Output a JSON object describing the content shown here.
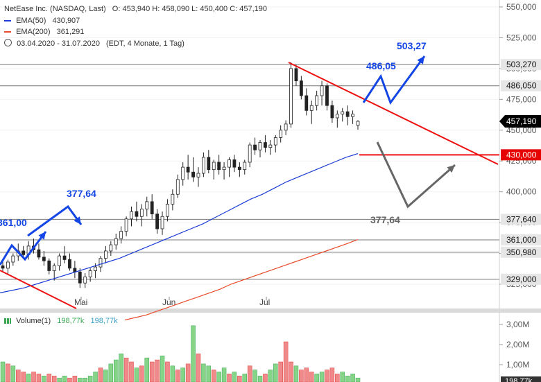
{
  "header": {
    "instrument": "NetEase Inc. (NASDAQ, Last)",
    "ohlc": "O: 453,940  H: 458,090  L: 450,400  C: 457,190",
    "ema50_label": "EMA(50)",
    "ema50_value": "430,907",
    "ema200_label": "EMA(200)",
    "ema200_value": "361,291",
    "range": "03.04.2020 - 31.07.2020",
    "range_note": "(EDT, 4 Monate, 1 Tag)"
  },
  "volume_legend": {
    "label": "Volume(1)",
    "value1": "198,77k",
    "value2": "198,77k"
  },
  "colors": {
    "up": "#3aa852",
    "down": "#e03c3c",
    "ema50": "#1a3cd6",
    "ema200": "#e84b2a",
    "arrow_blue": "#1446e6",
    "arrow_gray": "#666666",
    "trend_red": "#ee1111",
    "price_tag_black": "#000000",
    "price_tag_red": "#e60000"
  },
  "chart_data": {
    "type": "candlestick",
    "x_range": [
      "2020-04-03",
      "2020-07-31"
    ],
    "y_axis_labels": [
      "550,000",
      "525,000",
      "500,000",
      "475,000",
      "450,000",
      "425,000",
      "400,000",
      "375,000",
      "350,000",
      "325,000"
    ],
    "y_axis_values": [
      550,
      525,
      500,
      475,
      450,
      425,
      400,
      375,
      350,
      325
    ],
    "x_tick_labels": [
      "Mai",
      "Jun",
      "Jul"
    ],
    "price_levels": [
      {
        "label": "503,270",
        "value": 503.27
      },
      {
        "label": "486,050",
        "value": 486.05
      },
      {
        "label": "430,000",
        "value": 430.0
      },
      {
        "label": "377,640",
        "value": 377.64
      },
      {
        "label": "361,000",
        "value": 361.0
      },
      {
        "label": "350,980",
        "value": 350.98
      },
      {
        "label": "329,000",
        "value": 329.0
      }
    ],
    "last_price": {
      "label": "457,190",
      "value": 457.19
    },
    "annotations": [
      {
        "text": "503,27"
      },
      {
        "text": "486,05"
      },
      {
        "text": "377,64"
      },
      {
        "text": "361,00"
      },
      {
        "text": "377,64"
      }
    ],
    "candles": [
      [
        340,
        345,
        335,
        338
      ],
      [
        338,
        345,
        333,
        343
      ],
      [
        343,
        350,
        340,
        348
      ],
      [
        348,
        358,
        344,
        352
      ],
      [
        352,
        356,
        346,
        349
      ],
      [
        349,
        360,
        345,
        356
      ],
      [
        356,
        362,
        350,
        353
      ],
      [
        353,
        358,
        345,
        347
      ],
      [
        347,
        352,
        340,
        344
      ],
      [
        344,
        346,
        333,
        336
      ],
      [
        336,
        342,
        328,
        340
      ],
      [
        340,
        350,
        336,
        348
      ],
      [
        348,
        356,
        342,
        345
      ],
      [
        345,
        350,
        336,
        338
      ],
      [
        338,
        344,
        330,
        335
      ],
      [
        335,
        338,
        322,
        326
      ],
      [
        326,
        334,
        322,
        331
      ],
      [
        331,
        338,
        327,
        336
      ],
      [
        336,
        342,
        330,
        339
      ],
      [
        339,
        348,
        335,
        346
      ],
      [
        346,
        356,
        342,
        352
      ],
      [
        352,
        360,
        348,
        357
      ],
      [
        357,
        366,
        353,
        362
      ],
      [
        362,
        372,
        358,
        368
      ],
      [
        368,
        380,
        364,
        378
      ],
      [
        378,
        388,
        372,
        384
      ],
      [
        384,
        392,
        376,
        380
      ],
      [
        380,
        390,
        372,
        386
      ],
      [
        386,
        396,
        380,
        392
      ],
      [
        392,
        398,
        378,
        382
      ],
      [
        382,
        386,
        366,
        370
      ],
      [
        370,
        384,
        365,
        380
      ],
      [
        380,
        394,
        376,
        390
      ],
      [
        390,
        402,
        385,
        398
      ],
      [
        398,
        414,
        395,
        410
      ],
      [
        410,
        424,
        405,
        420
      ],
      [
        420,
        430,
        410,
        416
      ],
      [
        416,
        428,
        408,
        412
      ],
      [
        412,
        420,
        404,
        415
      ],
      [
        415,
        432,
        412,
        428
      ],
      [
        428,
        434,
        415,
        418
      ],
      [
        418,
        426,
        410,
        424
      ],
      [
        424,
        430,
        414,
        418
      ],
      [
        418,
        424,
        410,
        420
      ],
      [
        420,
        428,
        412,
        426
      ],
      [
        426,
        430,
        416,
        420
      ],
      [
        420,
        424,
        412,
        418
      ],
      [
        418,
        426,
        414,
        424
      ],
      [
        424,
        440,
        420,
        438
      ],
      [
        438,
        444,
        430,
        434
      ],
      [
        434,
        442,
        428,
        440
      ],
      [
        440,
        446,
        432,
        436
      ],
      [
        436,
        442,
        430,
        438
      ],
      [
        438,
        446,
        432,
        444
      ],
      [
        444,
        454,
        440,
        450
      ],
      [
        450,
        458,
        446,
        455
      ],
      [
        455,
        505,
        452,
        500
      ],
      [
        500,
        503,
        486,
        490
      ],
      [
        490,
        494,
        475,
        478
      ],
      [
        478,
        484,
        462,
        466
      ],
      [
        466,
        474,
        455,
        470
      ],
      [
        470,
        482,
        466,
        478
      ],
      [
        478,
        490,
        470,
        486
      ],
      [
        486,
        488,
        466,
        470
      ],
      [
        470,
        474,
        456,
        460
      ],
      [
        460,
        466,
        452,
        463
      ],
      [
        463,
        468,
        457,
        465
      ],
      [
        465,
        470,
        454,
        461
      ],
      [
        461,
        466,
        455,
        463
      ],
      [
        453.94,
        458.09,
        450.4,
        457.19
      ]
    ],
    "ema50": [
      318,
      320,
      322,
      325,
      328,
      331,
      334,
      337,
      340,
      343,
      346,
      350,
      354,
      358,
      362,
      366,
      370,
      374,
      379,
      384,
      389,
      394,
      398,
      403,
      408,
      412,
      416,
      420,
      424,
      428,
      431
    ],
    "ema200": [
      296,
      298,
      300,
      303,
      306,
      309,
      312,
      315,
      318,
      321,
      325,
      328,
      331,
      334,
      337,
      340,
      343,
      346,
      349,
      352,
      355,
      358,
      361.3
    ],
    "volume": [
      [
        1.0,
        "u"
      ],
      [
        0.9,
        "d"
      ],
      [
        0.8,
        "u"
      ],
      [
        0.6,
        "d"
      ],
      [
        0.5,
        "d"
      ],
      [
        0.4,
        "u"
      ],
      [
        0.5,
        "d"
      ],
      [
        0.4,
        "d"
      ],
      [
        0.3,
        "u"
      ],
      [
        0.4,
        "d"
      ],
      [
        0.3,
        "d"
      ],
      [
        0.2,
        "u"
      ],
      [
        0.3,
        "u"
      ],
      [
        0.2,
        "d"
      ],
      [
        0.3,
        "d"
      ],
      [
        0.2,
        "u"
      ],
      [
        0.2,
        "u"
      ],
      [
        0.3,
        "u"
      ],
      [
        0.5,
        "u"
      ],
      [
        0.7,
        "d"
      ],
      [
        0.6,
        "u"
      ],
      [
        0.9,
        "u"
      ],
      [
        1.1,
        "u"
      ],
      [
        1.4,
        "u"
      ],
      [
        1.2,
        "d"
      ],
      [
        1.0,
        "d"
      ],
      [
        0.7,
        "u"
      ],
      [
        0.8,
        "d"
      ],
      [
        1.2,
        "u"
      ],
      [
        1.0,
        "d"
      ],
      [
        1.1,
        "d"
      ],
      [
        1.3,
        "u"
      ],
      [
        1.0,
        "d"
      ],
      [
        0.8,
        "u"
      ],
      [
        0.6,
        "d"
      ],
      [
        0.7,
        "u"
      ],
      [
        0.9,
        "d"
      ],
      [
        2.8,
        "u"
      ],
      [
        1.4,
        "d"
      ],
      [
        0.9,
        "u"
      ],
      [
        0.8,
        "u"
      ],
      [
        0.6,
        "d"
      ],
      [
        0.5,
        "u"
      ],
      [
        0.7,
        "u"
      ],
      [
        0.4,
        "d"
      ],
      [
        0.5,
        "u"
      ],
      [
        0.3,
        "d"
      ],
      [
        0.4,
        "u"
      ],
      [
        0.8,
        "d"
      ],
      [
        0.6,
        "u"
      ],
      [
        0.3,
        "u"
      ],
      [
        0.4,
        "d"
      ],
      [
        0.6,
        "u"
      ],
      [
        0.9,
        "u"
      ],
      [
        1.0,
        "d"
      ],
      [
        2.0,
        "d"
      ],
      [
        1.0,
        "d"
      ],
      [
        0.8,
        "u"
      ],
      [
        0.6,
        "d"
      ],
      [
        0.7,
        "d"
      ],
      [
        0.5,
        "d"
      ],
      [
        0.4,
        "u"
      ],
      [
        0.5,
        "u"
      ],
      [
        0.6,
        "d"
      ],
      [
        0.7,
        "d"
      ],
      [
        0.4,
        "d"
      ],
      [
        0.5,
        "u"
      ],
      [
        0.3,
        "u"
      ],
      [
        0.4,
        "u"
      ],
      [
        0.2,
        "u"
      ]
    ],
    "volume_axis_labels": [
      "3,00M",
      "2,00M",
      "1,00M"
    ],
    "volume_axis_values": [
      3,
      2,
      1
    ],
    "volume_last_label": "198,77k"
  }
}
